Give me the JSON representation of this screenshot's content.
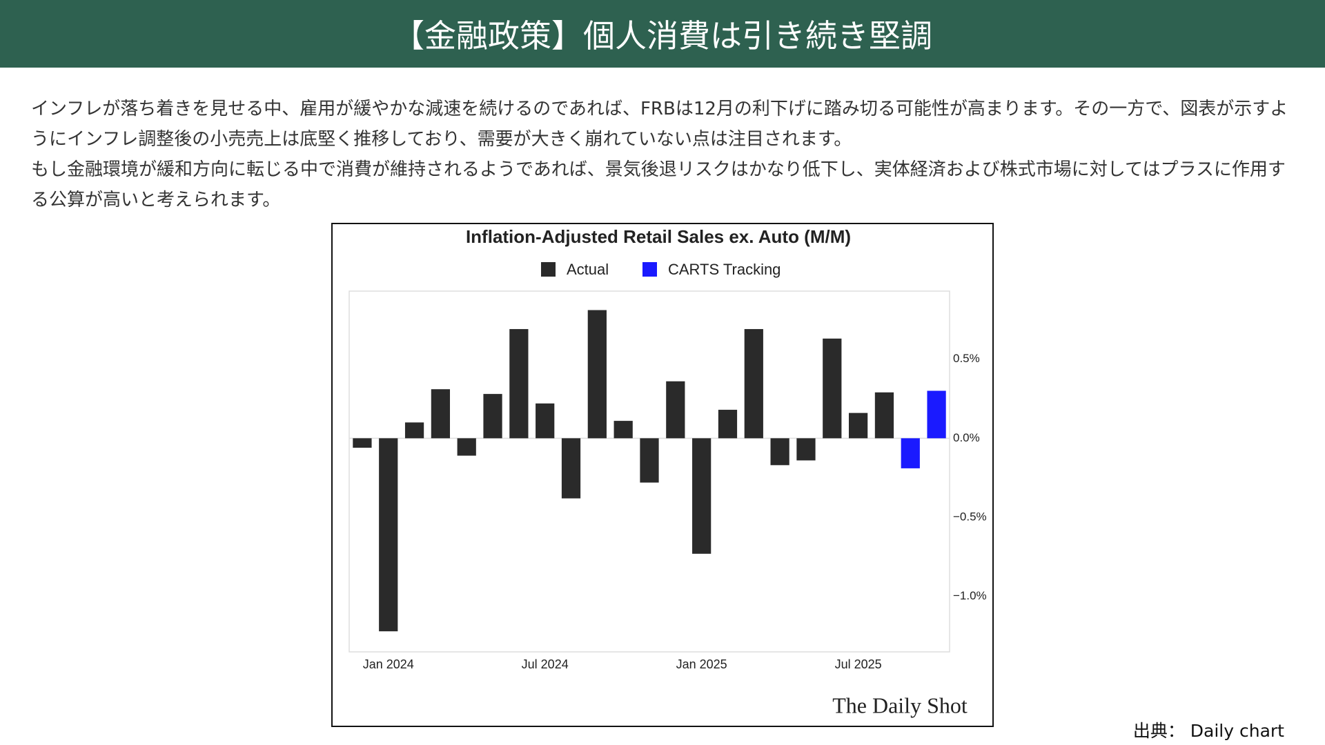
{
  "header": {
    "title": "【金融政策】個人消費は引き続き堅調"
  },
  "body": {
    "paragraphs": [
      "インフレが落ち着きを見せる中、雇用が緩やかな減速を続けるのであれば、FRBは12月の利下げに踏み切る可能性が高まります。その一方で、図表が示すようにインフレ調整後の小売売上は底堅く推移しており、需要が大きく崩れていない点は注目されます。",
      "もし金融環境が緩和方向に転じる中で消費が維持されるようであれば、景気後退リスクはかなり低下し、実体経済および株式市場に対してはプラスに作用する公算が高いと考えられます。"
    ]
  },
  "chart_data": {
    "type": "bar",
    "title": "Inflation-Adjusted Retail Sales ex. Auto (M/M)",
    "categories": [
      null,
      "Jan 2024",
      null,
      null,
      null,
      null,
      null,
      "Jul 2024",
      null,
      null,
      null,
      null,
      null,
      "Jan 2025",
      null,
      null,
      null,
      null,
      null,
      "Jul 2025",
      null,
      null,
      null
    ],
    "series": [
      {
        "name": "Actual",
        "color": "#2a2a2a",
        "values": [
          -0.06,
          -1.22,
          0.1,
          0.31,
          -0.11,
          0.28,
          0.69,
          0.22,
          -0.38,
          0.81,
          0.11,
          -0.28,
          0.36,
          -0.73,
          0.18,
          0.69,
          -0.17,
          -0.14,
          0.63,
          0.16,
          0.29,
          null,
          null
        ]
      },
      {
        "name": "CARTS Tracking",
        "color": "#1a1aff",
        "values": [
          null,
          null,
          null,
          null,
          null,
          null,
          null,
          null,
          null,
          null,
          null,
          null,
          null,
          null,
          null,
          null,
          null,
          null,
          null,
          null,
          null,
          -0.19,
          0.3
        ]
      }
    ],
    "ylim": [
      -1.35,
      0.93
    ],
    "yticks": [
      {
        "value": -1.0,
        "label": "−1.0%"
      },
      {
        "value": -0.5,
        "label": "−0.5%"
      },
      {
        "value": 0,
        "label": "0.0%"
      },
      {
        "value": 0.5,
        "label": "0.5%"
      }
    ],
    "grid": false,
    "watermark": "The Daily Shot"
  },
  "source": "出典： Daily chart"
}
